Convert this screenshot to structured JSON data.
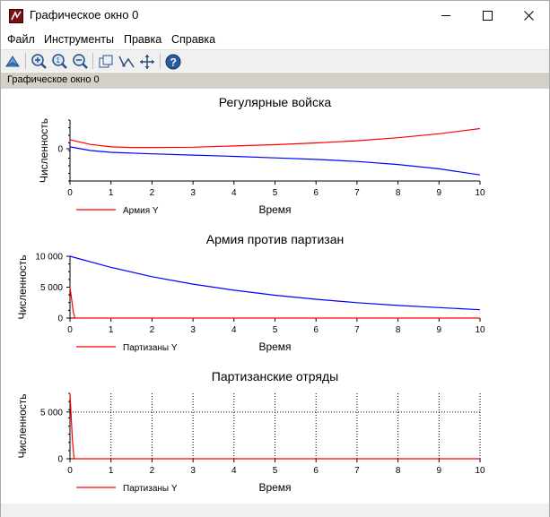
{
  "window": {
    "title": "Графическое окно 0",
    "controls": {
      "minimize": "—",
      "maximize": "☐",
      "close": "✕"
    }
  },
  "menu": {
    "items": [
      {
        "label": "Файл"
      },
      {
        "label": "Инструменты"
      },
      {
        "label": "Правка"
      },
      {
        "label": "Справка"
      }
    ]
  },
  "toolbar": {
    "buttons": [
      {
        "icon": "rotate-icon"
      },
      {
        "icon": "zoom-in-icon"
      },
      {
        "icon": "zoom-original-icon"
      },
      {
        "icon": "zoom-out-icon"
      },
      {
        "icon": "copy-figure-icon"
      },
      {
        "icon": "datatip-icon"
      },
      {
        "icon": "move-icon"
      },
      {
        "icon": "help-icon"
      }
    ]
  },
  "tab": {
    "label": "Графическое окно 0"
  },
  "colors": {
    "red": "#ff0000",
    "blue": "#0000ff",
    "toolbar_bg": "#f0f0f0",
    "tab_bg": "#d4d0c8"
  },
  "chart_data": [
    {
      "type": "line",
      "title": "Регулярные войска",
      "xlabel": "Время",
      "ylabel": "Численность",
      "xlim": [
        0,
        10
      ],
      "x_ticks": [
        "0",
        "1",
        "2",
        "3",
        "4",
        "5",
        "6",
        "7",
        "8",
        "9",
        "10"
      ],
      "y_ticks": [
        "0"
      ],
      "ylim": [
        -1.0,
        1.0
      ],
      "grid": false,
      "legend": {
        "position": "bottom-left",
        "entries": [
          {
            "label": "Армия Y",
            "color": "#ff0000"
          }
        ]
      },
      "series": [
        {
          "name": "Армия Y",
          "color": "#ff0000",
          "x": [
            0,
            0.5,
            1,
            1.5,
            2,
            3,
            4,
            5,
            6,
            7,
            8,
            9,
            10
          ],
          "y": [
            0.35,
            0.2,
            0.12,
            0.1,
            0.1,
            0.11,
            0.15,
            0.19,
            0.25,
            0.32,
            0.42,
            0.55,
            0.72
          ]
        },
        {
          "color": "#0000ff",
          "x": [
            0,
            0.5,
            1,
            2,
            3,
            4,
            5,
            6,
            7,
            8,
            9,
            10
          ],
          "y": [
            0.12,
            0.0,
            -0.06,
            -0.11,
            -0.15,
            -0.19,
            -0.24,
            -0.29,
            -0.36,
            -0.46,
            -0.6,
            -0.8
          ]
        }
      ]
    },
    {
      "type": "line",
      "title": "Армия против партизан",
      "xlabel": "Время",
      "ylabel": "Численность",
      "xlim": [
        0,
        10
      ],
      "x_ticks": [
        "0",
        "1",
        "2",
        "3",
        "4",
        "5",
        "6",
        "7",
        "8",
        "9",
        "10"
      ],
      "y_ticks": [
        "0",
        "5 000",
        "10 000"
      ],
      "ylim": [
        0,
        10000
      ],
      "grid": false,
      "legend": {
        "position": "bottom-left",
        "entries": [
          {
            "label": "Партизаны Y",
            "color": "#ff0000"
          }
        ]
      },
      "series": [
        {
          "color": "#0000ff",
          "x": [
            0,
            1,
            2,
            3,
            4,
            5,
            6,
            7,
            8,
            9,
            10
          ],
          "y": [
            10000,
            8200,
            6700,
            5500,
            4500,
            3700,
            3050,
            2500,
            2050,
            1700,
            1350
          ]
        },
        {
          "name": "Партизаны Y",
          "color": "#ff0000",
          "x": [
            0,
            0.08,
            0.12,
            10
          ],
          "y": [
            5000,
            1000,
            0,
            0
          ]
        }
      ]
    },
    {
      "type": "line",
      "title": "Партизанские отряды",
      "xlabel": "Время",
      "ylabel": "Численность",
      "xlim": [
        0,
        10
      ],
      "x_ticks": [
        "0",
        "1",
        "2",
        "3",
        "4",
        "5",
        "6",
        "7",
        "8",
        "9",
        "10"
      ],
      "y_ticks": [
        "0",
        "5 000"
      ],
      "ylim": [
        0,
        7000
      ],
      "grid": true,
      "legend": {
        "position": "bottom-left",
        "entries": [
          {
            "label": "Партизаны Y",
            "color": "#ff0000"
          }
        ]
      },
      "series": [
        {
          "name": "Партизаны Y",
          "color": "#ff0000",
          "x": [
            0,
            0.06,
            0.1,
            10
          ],
          "y": [
            7000,
            2000,
            0,
            0
          ]
        }
      ]
    }
  ]
}
